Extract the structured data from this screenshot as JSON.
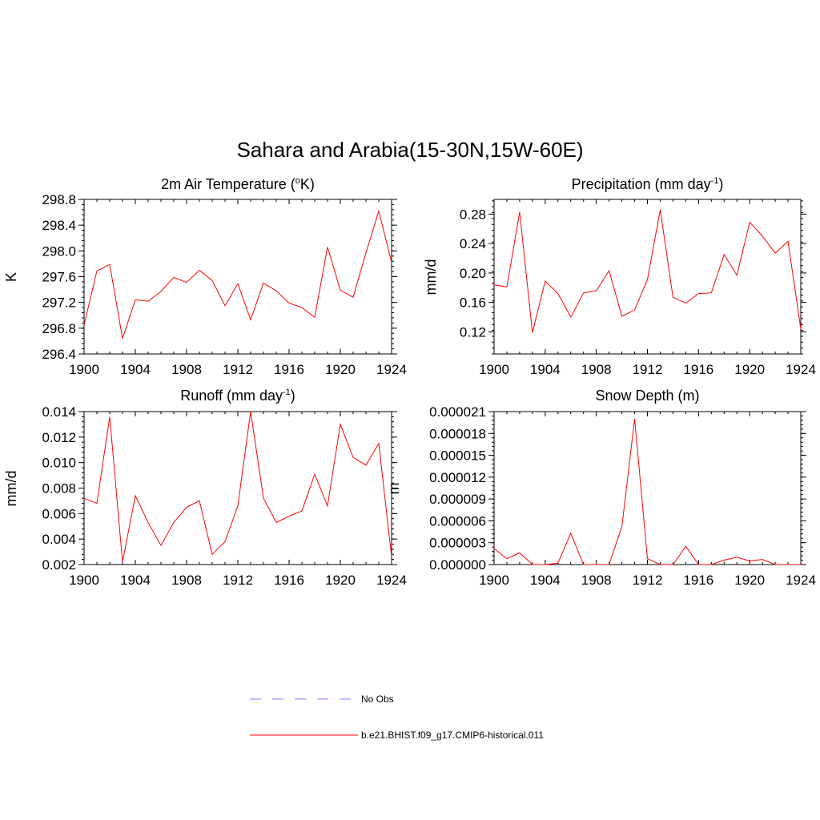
{
  "main_title": "Sahara and Arabia(15-30N,15W-60E)",
  "series_color": "#ff0000",
  "obs_color": "#9999ff",
  "legend": {
    "obs_label": "No Obs",
    "model_label": "b.e21.BHIST.f09_g17.CMIP6-historical.011"
  },
  "chart_data": [
    {
      "type": "line",
      "title": "2m Air Temperature (",
      "title_sup": "o",
      "title_after": "K)",
      "ylabel": "K",
      "xlim": [
        1900,
        1924
      ],
      "ylim": [
        296.4,
        298.8
      ],
      "xticks": [
        "1900",
        "1904",
        "1908",
        "1912",
        "1916",
        "1920",
        "1924"
      ],
      "yticks": [
        "296.4",
        "296.8",
        "297.2",
        "297.6",
        "298.0",
        "298.4",
        "298.8"
      ],
      "x": [
        1900,
        1901,
        1902,
        1903,
        1904,
        1905,
        1906,
        1907,
        1908,
        1909,
        1910,
        1911,
        1912,
        1913,
        1914,
        1915,
        1916,
        1917,
        1918,
        1919,
        1920,
        1921,
        1922,
        1923,
        1924
      ],
      "series": [
        {
          "values": [
            296.85,
            297.69,
            297.79,
            296.64,
            297.24,
            297.22,
            297.37,
            297.59,
            297.51,
            297.7,
            297.54,
            297.15,
            297.49,
            296.93,
            297.5,
            297.38,
            297.19,
            297.12,
            296.97,
            298.06,
            297.39,
            297.28,
            297.97,
            298.62,
            297.82
          ]
        }
      ]
    },
    {
      "type": "line",
      "title": "Precipitation (mm day",
      "title_sup": "-1",
      "title_after": ")",
      "ylabel": "mm/d",
      "xlim": [
        1900,
        1924
      ],
      "ylim": [
        0.09,
        0.3
      ],
      "xticks": [
        "1900",
        "1904",
        "1908",
        "1912",
        "1916",
        "1920",
        "1924"
      ],
      "yticks": [
        "0.12",
        "0.16",
        "0.20",
        "0.24",
        "0.28"
      ],
      "ytick_values": [
        0.12,
        0.16,
        0.2,
        0.24,
        0.28
      ],
      "x": [
        1900,
        1901,
        1902,
        1903,
        1904,
        1905,
        1906,
        1907,
        1908,
        1909,
        1910,
        1911,
        1912,
        1913,
        1914,
        1915,
        1916,
        1917,
        1918,
        1919,
        1920,
        1921,
        1922,
        1923,
        1924
      ],
      "series": [
        {
          "values": [
            0.184,
            0.181,
            0.283,
            0.119,
            0.189,
            0.172,
            0.14,
            0.173,
            0.176,
            0.203,
            0.141,
            0.15,
            0.191,
            0.286,
            0.167,
            0.159,
            0.172,
            0.173,
            0.225,
            0.197,
            0.269,
            0.25,
            0.227,
            0.243,
            0.124
          ]
        }
      ]
    },
    {
      "type": "line",
      "title": "Runoff (mm day",
      "title_sup": "-1",
      "title_after": ")",
      "ylabel": "mm/d",
      "xlim": [
        1900,
        1924
      ],
      "ylim": [
        0.002,
        0.014
      ],
      "xticks": [
        "1900",
        "1904",
        "1908",
        "1912",
        "1916",
        "1920",
        "1924"
      ],
      "yticks": [
        "0.002",
        "0.004",
        "0.006",
        "0.008",
        "0.010",
        "0.012",
        "0.014"
      ],
      "x": [
        1900,
        1901,
        1902,
        1903,
        1904,
        1905,
        1906,
        1907,
        1908,
        1909,
        1910,
        1911,
        1912,
        1913,
        1914,
        1915,
        1916,
        1917,
        1918,
        1919,
        1920,
        1921,
        1922,
        1923,
        1924
      ],
      "series": [
        {
          "values": [
            0.0072,
            0.0068,
            0.0136,
            0.0022,
            0.0074,
            0.0053,
            0.0035,
            0.0053,
            0.0065,
            0.007,
            0.0028,
            0.0038,
            0.0066,
            0.014,
            0.0072,
            0.0053,
            0.0058,
            0.0062,
            0.0091,
            0.0066,
            0.013,
            0.0104,
            0.0098,
            0.0115,
            0.0026
          ]
        }
      ]
    },
    {
      "type": "line",
      "title": "Snow Depth (m)",
      "title_sup": "",
      "title_after": "",
      "ylabel": "m",
      "xlim": [
        1900,
        1924
      ],
      "ylim": [
        0,
        2.1e-05
      ],
      "xticks": [
        "1900",
        "1904",
        "1908",
        "1912",
        "1916",
        "1920",
        "1924"
      ],
      "yticks": [
        "0.000000",
        "0.000003",
        "0.000006",
        "0.000009",
        "0.000012",
        "0.000015",
        "0.000018",
        "0.000021"
      ],
      "x": [
        1900,
        1901,
        1902,
        1903,
        1904,
        1905,
        1906,
        1907,
        1908,
        1909,
        1910,
        1911,
        1912,
        1913,
        1914,
        1915,
        1916,
        1917,
        1918,
        1919,
        1920,
        1921,
        1922,
        1923,
        1924
      ],
      "series": [
        {
          "values": [
            2.2e-06,
            8e-07,
            1.6e-06,
            0.0,
            0.0,
            2e-07,
            4.3e-06,
            0.0,
            0.0,
            0.0,
            5.2e-06,
            2e-05,
            8e-07,
            0.0,
            0.0,
            2.5e-06,
            0.0,
            0.0,
            6e-07,
            1e-06,
            5e-07,
            7e-07,
            0.0,
            0.0,
            0.0
          ]
        }
      ]
    }
  ]
}
